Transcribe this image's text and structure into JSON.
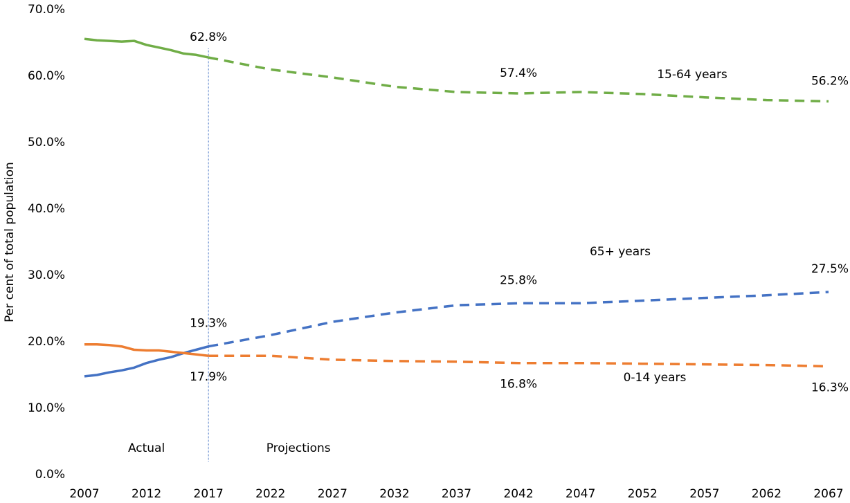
{
  "chart_data": {
    "type": "line",
    "y_label": "Per cent of total population",
    "x": [
      2007,
      2008,
      2009,
      2010,
      2011,
      2012,
      2013,
      2014,
      2015,
      2016,
      2017,
      2022,
      2027,
      2032,
      2037,
      2042,
      2047,
      2052,
      2057,
      2062,
      2067
    ],
    "xlim": [
      2007,
      2067
    ],
    "xticks": [
      2007,
      2012,
      2017,
      2022,
      2027,
      2032,
      2037,
      2042,
      2047,
      2052,
      2057,
      2062,
      2067
    ],
    "ylim": [
      0,
      70
    ],
    "yticks": [
      {
        "value": 0,
        "label": "0.0%"
      },
      {
        "value": 10,
        "label": "10.0%"
      },
      {
        "value": 20,
        "label": "20.0%"
      },
      {
        "value": 30,
        "label": "30.0%"
      },
      {
        "value": 40,
        "label": "40.0%"
      },
      {
        "value": 50,
        "label": "50.0%"
      },
      {
        "value": 60,
        "label": "60.0%"
      },
      {
        "value": 70,
        "label": "70.0%"
      }
    ],
    "grid": false,
    "divider": {
      "x": 2017,
      "left_label": "Actual",
      "right_label": "Projections",
      "color": "#4472c4"
    },
    "series": [
      {
        "name": "15-64 years",
        "color": "#70ad47",
        "values": [
          65.6,
          65.4,
          65.3,
          65.2,
          65.3,
          64.7,
          64.3,
          63.9,
          63.4,
          63.2,
          62.8,
          61.0,
          59.8,
          58.4,
          57.6,
          57.4,
          57.6,
          57.3,
          56.8,
          56.4,
          56.2
        ],
        "value_labels": [
          null,
          null,
          null,
          null,
          null,
          null,
          null,
          null,
          null,
          null,
          "62.8%",
          null,
          null,
          null,
          null,
          "57.4%",
          null,
          null,
          null,
          null,
          "56.2%"
        ]
      },
      {
        "name": "65+ years",
        "color": "#4472c4",
        "values": [
          14.8,
          15.0,
          15.4,
          15.7,
          16.1,
          16.8,
          17.3,
          17.7,
          18.3,
          18.8,
          19.3,
          21.0,
          23.0,
          24.4,
          25.5,
          25.8,
          25.8,
          26.2,
          26.6,
          27.0,
          27.5
        ],
        "value_labels": [
          null,
          null,
          null,
          null,
          null,
          null,
          null,
          null,
          null,
          null,
          "19.3%",
          null,
          null,
          null,
          null,
          "25.8%",
          null,
          null,
          null,
          null,
          "27.5%"
        ]
      },
      {
        "name": "0-14 years",
        "color": "#ed7d31",
        "values": [
          19.6,
          19.6,
          19.5,
          19.3,
          18.8,
          18.7,
          18.7,
          18.5,
          18.3,
          18.1,
          17.9,
          17.9,
          17.3,
          17.1,
          17.0,
          16.8,
          16.8,
          16.7,
          16.6,
          16.5,
          16.3
        ],
        "value_labels": [
          null,
          null,
          null,
          null,
          null,
          null,
          null,
          null,
          null,
          null,
          "17.9%",
          null,
          null,
          null,
          null,
          "16.8%",
          null,
          null,
          null,
          null,
          "16.3%"
        ]
      }
    ]
  }
}
